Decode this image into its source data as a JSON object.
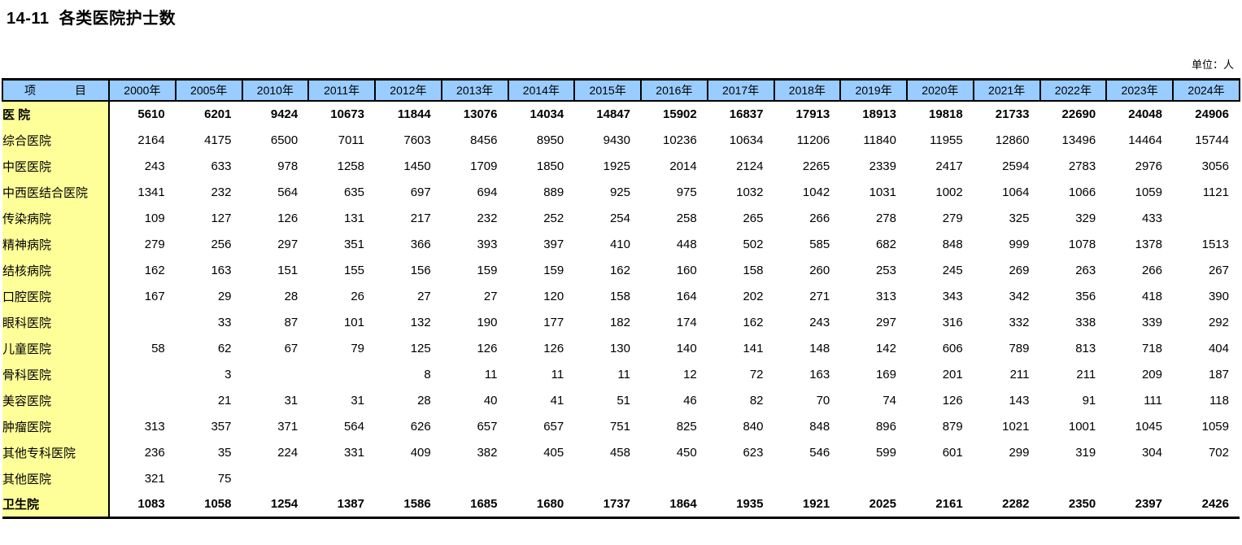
{
  "title": "14-11  各类医院护士数",
  "unit_label": "单位：人",
  "colors": {
    "header_bg": "#99CCFF",
    "stub_bg": "#FFFF99",
    "border": "#000000"
  },
  "table": {
    "item_header_left": "项",
    "item_header_right": "目",
    "year_headers": [
      "2000年",
      "2005年",
      "2010年",
      "2011年",
      "2012年",
      "2013年",
      "2014年",
      "2015年",
      "2016年",
      "2017年",
      "2018年",
      "2019年",
      "2020年",
      "2021年",
      "2022年",
      "2023年",
      "2024年"
    ],
    "rows": [
      {
        "label": "医  院",
        "indent": 0,
        "bold": true,
        "values": [
          "5610",
          "6201",
          "9424",
          "10673",
          "11844",
          "13076",
          "14034",
          "14847",
          "15902",
          "16837",
          "17913",
          "18913",
          "19818",
          "21733",
          "22690",
          "24048",
          "24906"
        ]
      },
      {
        "label": "综合医院",
        "indent": 1,
        "bold": false,
        "values": [
          "2164",
          "4175",
          "6500",
          "7011",
          "7603",
          "8456",
          "8950",
          "9430",
          "10236",
          "10634",
          "11206",
          "11840",
          "11955",
          "12860",
          "13496",
          "14464",
          "15744"
        ]
      },
      {
        "label": "中医医院",
        "indent": 1,
        "bold": false,
        "values": [
          "243",
          "633",
          "978",
          "1258",
          "1450",
          "1709",
          "1850",
          "1925",
          "2014",
          "2124",
          "2265",
          "2339",
          "2417",
          "2594",
          "2783",
          "2976",
          "3056"
        ]
      },
      {
        "label": "中西医结合医院",
        "indent": 1,
        "bold": false,
        "values": [
          "1341",
          "232",
          "564",
          "635",
          "697",
          "694",
          "889",
          "925",
          "975",
          "1032",
          "1042",
          "1031",
          "1002",
          "1064",
          "1066",
          "1059",
          "1121"
        ]
      },
      {
        "label": "传染病院",
        "indent": 1,
        "bold": false,
        "values": [
          "109",
          "127",
          "126",
          "131",
          "217",
          "232",
          "252",
          "254",
          "258",
          "265",
          "266",
          "278",
          "279",
          "325",
          "329",
          "433",
          ""
        ]
      },
      {
        "label": "精神病院",
        "indent": 1,
        "bold": false,
        "values": [
          "279",
          "256",
          "297",
          "351",
          "366",
          "393",
          "397",
          "410",
          "448",
          "502",
          "585",
          "682",
          "848",
          "999",
          "1078",
          "1378",
          "1513"
        ]
      },
      {
        "label": "结核病院",
        "indent": 1,
        "bold": false,
        "values": [
          "162",
          "163",
          "151",
          "155",
          "156",
          "159",
          "159",
          "162",
          "160",
          "158",
          "260",
          "253",
          "245",
          "269",
          "263",
          "266",
          "267"
        ]
      },
      {
        "label": "口腔医院",
        "indent": 2,
        "bold": false,
        "values": [
          "167",
          "29",
          "28",
          "26",
          "27",
          "27",
          "120",
          "158",
          "164",
          "202",
          "271",
          "313",
          "343",
          "342",
          "356",
          "418",
          "390"
        ]
      },
      {
        "label": "眼科医院",
        "indent": 2,
        "bold": false,
        "values": [
          "",
          "33",
          "87",
          "101",
          "132",
          "190",
          "177",
          "182",
          "174",
          "162",
          "243",
          "297",
          "316",
          "332",
          "338",
          "339",
          "292"
        ]
      },
      {
        "label": "儿童医院",
        "indent": 1,
        "bold": false,
        "values": [
          "58",
          "62",
          "67",
          "79",
          "125",
          "126",
          "126",
          "130",
          "140",
          "141",
          "148",
          "142",
          "606",
          "789",
          "813",
          "718",
          "404"
        ]
      },
      {
        "label": "骨科医院",
        "indent": 2,
        "bold": false,
        "values": [
          "",
          "3",
          "",
          "",
          "8",
          "11",
          "11",
          "11",
          "12",
          "72",
          "163",
          "169",
          "201",
          "211",
          "211",
          "209",
          "187"
        ]
      },
      {
        "label": "美容医院",
        "indent": 1,
        "bold": false,
        "values": [
          "",
          "21",
          "31",
          "31",
          "28",
          "40",
          "41",
          "51",
          "46",
          "82",
          "70",
          "74",
          "126",
          "143",
          "91",
          "111",
          "118"
        ]
      },
      {
        "label": "肿瘤医院",
        "indent": 1,
        "bold": false,
        "values": [
          "313",
          "357",
          "371",
          "564",
          "626",
          "657",
          "657",
          "751",
          "825",
          "840",
          "848",
          "896",
          "879",
          "1021",
          "1001",
          "1045",
          "1059"
        ]
      },
      {
        "label": "其他专科医院",
        "indent": 1,
        "bold": false,
        "values": [
          "236",
          "35",
          "224",
          "331",
          "409",
          "382",
          "405",
          "458",
          "450",
          "623",
          "546",
          "599",
          "601",
          "299",
          "319",
          "304",
          "702"
        ]
      },
      {
        "label": "其他医院",
        "indent": 1,
        "bold": false,
        "values": [
          "321",
          "75",
          "",
          "",
          "",
          "",
          "",
          "",
          "",
          "",
          "",
          "",
          "",
          "",
          "",
          "",
          ""
        ]
      },
      {
        "label": "卫生院",
        "indent": 0,
        "bold": true,
        "values": [
          "1083",
          "1058",
          "1254",
          "1387",
          "1586",
          "1685",
          "1680",
          "1737",
          "1864",
          "1935",
          "1921",
          "2025",
          "2161",
          "2282",
          "2350",
          "2397",
          "2426"
        ]
      }
    ]
  }
}
